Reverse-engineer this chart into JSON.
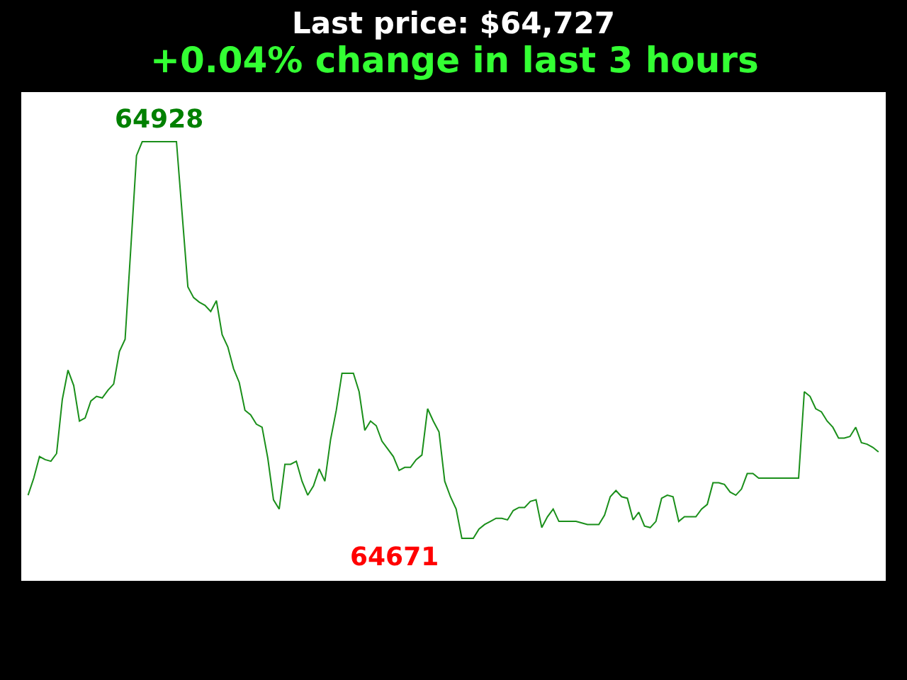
{
  "chart_data": {
    "type": "line",
    "title": "Last price: $64,727",
    "subtitle": "+0.04% change in last 3 hours",
    "categories": [
      null,
      null,
      null,
      null,
      null,
      null,
      null,
      null,
      null,
      null,
      null,
      null,
      null,
      null,
      null,
      null,
      null,
      null,
      null,
      null,
      null,
      null,
      null,
      null,
      null,
      null,
      null,
      null,
      null,
      null,
      null,
      null,
      null,
      null,
      null,
      null,
      null,
      null,
      null,
      null,
      null,
      null,
      null,
      null,
      null,
      null,
      null,
      null,
      null,
      null,
      null,
      null,
      null,
      null,
      null,
      null,
      null,
      null,
      null,
      null,
      null,
      null,
      null,
      null,
      null,
      null,
      null,
      null,
      null,
      null,
      null,
      null,
      null,
      null,
      null,
      null,
      null,
      null,
      null,
      null,
      null,
      null,
      null,
      null,
      null,
      null,
      null,
      null,
      null,
      null,
      null,
      null,
      null,
      null,
      null,
      null,
      null,
      null,
      null,
      null,
      null,
      null,
      null,
      null,
      null,
      null,
      null,
      null,
      null,
      null,
      null,
      null,
      null,
      null,
      null,
      null,
      null,
      null,
      null,
      null,
      null,
      null,
      null,
      null,
      null,
      null,
      null,
      null,
      null,
      null,
      null,
      null,
      null,
      null,
      null,
      null,
      null,
      null,
      null,
      null,
      null,
      null,
      null,
      null,
      null,
      null,
      null,
      null,
      null,
      null
    ],
    "series": [
      {
        "color": "#1a8f1a",
        "values": [
          64699,
          64710,
          64724,
          64722,
          64721,
          64726,
          64761,
          64780,
          64770,
          64747,
          64749,
          64760,
          64763,
          64762,
          64767,
          64771,
          64792,
          64800,
          64859,
          64919,
          64928,
          64928,
          64928,
          64928,
          64928,
          64928,
          64928,
          64881,
          64834,
          64827,
          64824,
          64822,
          64818,
          64825,
          64803,
          64795,
          64781,
          64772,
          64754,
          64751,
          64745,
          64743,
          64723,
          64696,
          64690,
          64719,
          64719,
          64721,
          64708,
          64699,
          64705,
          64716,
          64708,
          64735,
          64754,
          64778,
          64778,
          64778,
          64766,
          64741,
          64747,
          64744,
          64734,
          64729,
          64724,
          64715,
          64717,
          64717,
          64722,
          64725,
          64755,
          64747,
          64740,
          64708,
          64698,
          64690,
          64671,
          64671,
          64671,
          64677,
          64680,
          64682,
          64684,
          64684,
          64683,
          64689,
          64691,
          64691,
          64695,
          64696,
          64678,
          64685,
          64690,
          64682,
          64682,
          64682,
          64682,
          64681,
          64680,
          64680,
          64680,
          64686,
          64698,
          64702,
          64698,
          64697,
          64683,
          64688,
          64679,
          64678,
          64682,
          64697,
          64699,
          64698,
          64682,
          64685,
          64685,
          64685,
          64690,
          64693,
          64707,
          64707,
          64706,
          64701,
          64699,
          64703,
          64713,
          64713,
          64710,
          64710,
          64710,
          64710,
          64710,
          64710,
          64710,
          64710,
          64766,
          64763,
          64755,
          64753,
          64747,
          64743,
          64736,
          64736,
          64737,
          64743,
          64733,
          64732,
          64730,
          64727
        ],
        "value_labels": [
          null,
          null,
          null,
          null,
          null,
          null,
          null,
          null,
          null,
          null,
          null,
          null,
          null,
          null,
          null,
          null,
          null,
          null,
          null,
          null,
          null,
          null,
          null,
          "64928",
          null,
          null,
          null,
          null,
          null,
          null,
          null,
          null,
          null,
          null,
          null,
          null,
          null,
          null,
          null,
          null,
          null,
          null,
          null,
          null,
          null,
          null,
          null,
          null,
          null,
          null,
          null,
          null,
          null,
          null,
          null,
          null,
          null,
          null,
          null,
          null,
          null,
          null,
          null,
          null,
          null,
          null,
          null,
          null,
          null,
          null,
          null,
          null,
          null,
          null,
          null,
          null,
          "64671",
          null,
          null,
          null,
          null,
          null,
          null,
          null,
          null,
          null,
          null,
          null,
          null,
          null,
          null,
          null,
          null,
          null,
          null,
          null,
          null,
          null,
          null,
          null,
          null,
          null,
          null,
          null,
          null,
          null,
          null,
          null,
          null,
          null,
          null,
          null,
          null,
          null,
          null,
          null,
          null,
          null,
          null,
          null,
          null,
          null,
          null,
          null,
          null,
          null,
          null,
          null,
          null,
          null,
          null,
          null,
          null,
          null,
          null,
          null,
          null,
          null,
          null,
          null,
          null,
          null,
          null,
          null,
          null,
          null,
          null,
          null,
          null,
          null
        ]
      }
    ]
  }
}
